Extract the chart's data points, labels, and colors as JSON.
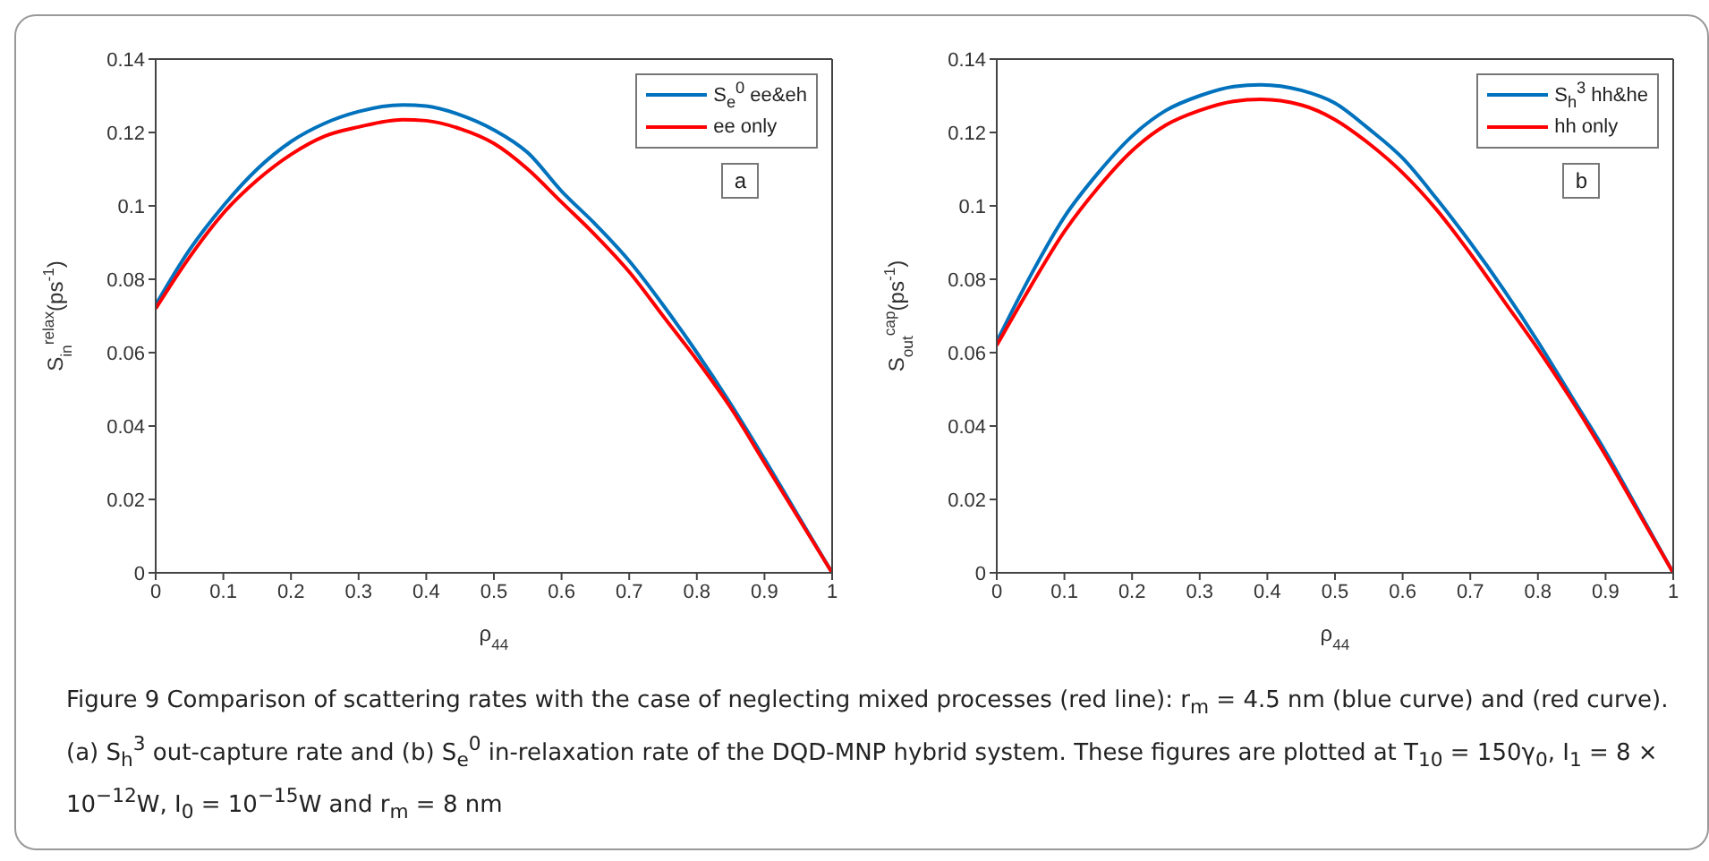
{
  "chart_data": [
    {
      "type": "line",
      "xlabel": "ρ$_{44}$",
      "ylabel": "S$_{in}$$^{relax}$(ps$^{-1}$)",
      "x": [
        0,
        0.05,
        0.1,
        0.15,
        0.2,
        0.25,
        0.3,
        0.365,
        0.4,
        0.45,
        0.5,
        0.55,
        0.6,
        0.65,
        0.7,
        0.75,
        0.8,
        0.85,
        0.9,
        0.95,
        1
      ],
      "xlim": [
        0,
        1
      ],
      "xticks": [
        0,
        0.1,
        0.2,
        0.3,
        0.4,
        0.5,
        0.6,
        0.7,
        0.8,
        0.9,
        1
      ],
      "ylim": [
        0,
        0.14
      ],
      "yticks": [
        0,
        0.02,
        0.04,
        0.06,
        0.08,
        0.1,
        0.12,
        0.14
      ],
      "legend": "top right",
      "marker": "none",
      "line_style": "solid",
      "series": [
        {
          "name": "S$_{e}$$^{0}$ ee&eh",
          "color": "#0072bd",
          "values": [
            0.073,
            0.088,
            0.1,
            0.11,
            0.1175,
            0.1225,
            0.1257,
            0.1275,
            0.1272,
            0.1248,
            0.1207,
            0.1145,
            0.104,
            0.095,
            0.085,
            0.073,
            0.06,
            0.046,
            0.031,
            0.0155,
            0
          ]
        },
        {
          "name": "ee only",
          "color": "#ff0000",
          "values": [
            0.072,
            0.086,
            0.098,
            0.107,
            0.114,
            0.119,
            0.1215,
            0.1235,
            0.1232,
            0.121,
            0.117,
            0.11,
            0.101,
            0.092,
            0.082,
            0.07,
            0.058,
            0.045,
            0.03,
            0.015,
            0
          ]
        }
      ],
      "annotations": [
        "a",
        "Figure 9  Comparison of scattering rates with the case of neglecting mixed processes (red line): r$_{m}$ = 4.5 nm (blue curve) and (red curve). (a) S$_{h}$$^{3}$ out-capture rate and (b) S$_{e}$$^{0}$ in-relaxation rate of the DQD-MNP hybrid system. These figures are plotted at T$_{10}$ = 150γ$_{0}$, I$_{1}$ = 8 × 10$^{−12}$W, I$_{0}$ = 10$^{−15}$W and r$_{m}$ = 8 nm"
      ]
    },
    {
      "type": "line",
      "xlabel": "ρ$_{44}$",
      "ylabel": "S$_{out}$$^{cap}$(ps$^{-1}$)",
      "x": [
        0,
        0.05,
        0.1,
        0.15,
        0.2,
        0.25,
        0.3,
        0.35,
        0.39,
        0.45,
        0.5,
        0.55,
        0.6,
        0.65,
        0.7,
        0.75,
        0.8,
        0.85,
        0.9,
        0.95,
        1
      ],
      "xlim": [
        0,
        1
      ],
      "xticks": [
        0,
        0.1,
        0.2,
        0.3,
        0.4,
        0.5,
        0.6,
        0.7,
        0.8,
        0.9,
        1
      ],
      "ylim": [
        0,
        0.14
      ],
      "yticks": [
        0,
        0.02,
        0.04,
        0.06,
        0.08,
        0.1,
        0.12,
        0.14
      ],
      "legend": "top right",
      "marker": "none",
      "line_style": "solid",
      "series": [
        {
          "name": "S$_{h}$$^{3}$ hh&he",
          "color": "#0072bd",
          "values": [
            0.063,
            0.081,
            0.097,
            0.109,
            0.119,
            0.126,
            0.13,
            0.1325,
            0.133,
            0.1315,
            0.128,
            0.121,
            0.113,
            0.102,
            0.09,
            0.077,
            0.063,
            0.048,
            0.033,
            0.0165,
            0
          ]
        },
        {
          "name": "hh only",
          "color": "#ff0000",
          "values": [
            0.062,
            0.078,
            0.093,
            0.105,
            0.115,
            0.122,
            0.126,
            0.1285,
            0.129,
            0.1275,
            0.1235,
            0.117,
            0.109,
            0.099,
            0.087,
            0.074,
            0.061,
            0.047,
            0.032,
            0.016,
            0
          ]
        }
      ],
      "annotations": [
        "b"
      ]
    }
  ]
}
